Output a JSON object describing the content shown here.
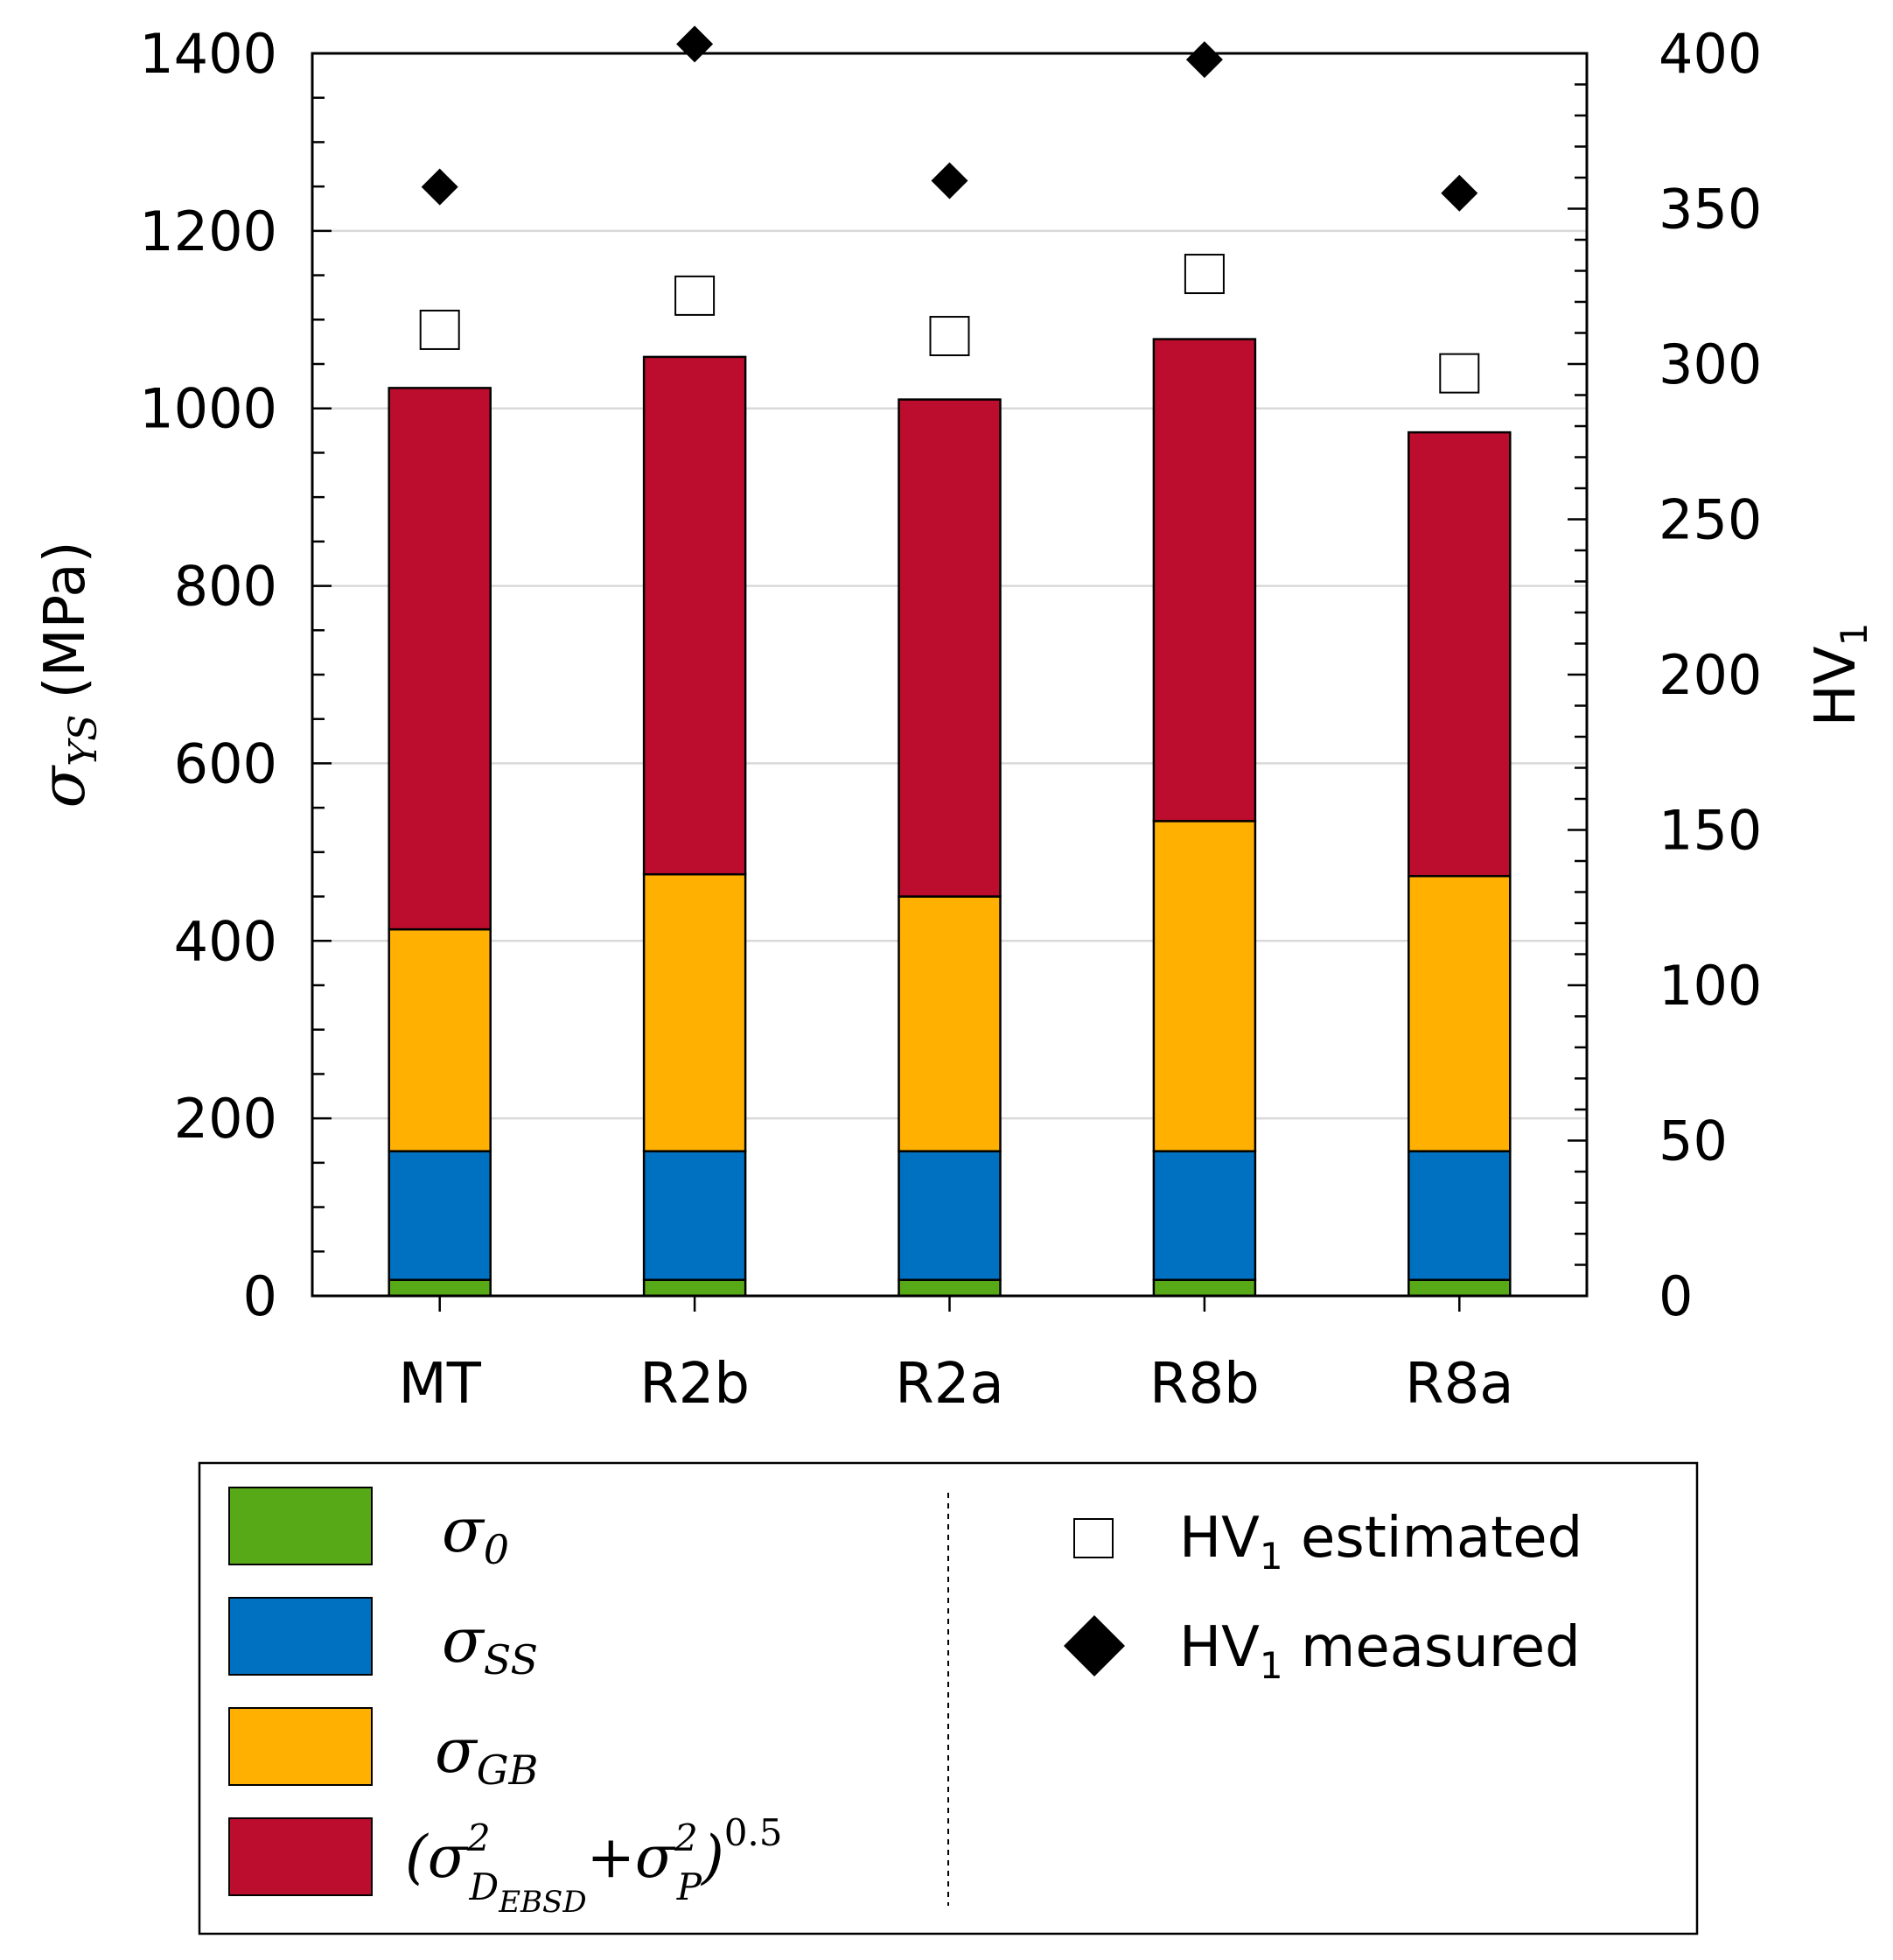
{
  "chart_data": {
    "type": "bar",
    "stacked": true,
    "categories": [
      "MT",
      "R2b",
      "R2a",
      "R8b",
      "R8a"
    ],
    "series": [
      {
        "name": "σ0",
        "color": "#58A918",
        "values": [
          18,
          18,
          18,
          18,
          18
        ]
      },
      {
        "name": "σSS",
        "color": "#0070C0",
        "values": [
          145,
          145,
          145,
          145,
          145
        ]
      },
      {
        "name": "σGB",
        "color": "#FFB000",
        "values": [
          250,
          312,
          287,
          372,
          310
        ]
      },
      {
        "name": "(σ²D_EBSD + σ²P)^0.5",
        "color": "#BD0D2E",
        "values": [
          610,
          583,
          560,
          543,
          500
        ]
      }
    ],
    "secondary_series": [
      {
        "name": "HV1 estimated",
        "marker": "square-open",
        "values": [
          311,
          322,
          309,
          329,
          297
        ]
      },
      {
        "name": "HV1 measured",
        "marker": "diamond-filled",
        "values": [
          357,
          403,
          359,
          398,
          355
        ]
      }
    ],
    "ylabel_left": {
      "symbol": "σ",
      "subscript": "YS",
      "unit": "(MPa)"
    },
    "ylabel_right": {
      "base": "HV",
      "subscript": "1"
    },
    "ylim_left": [
      0,
      1400
    ],
    "yticks_left": [
      "0",
      "200",
      "400",
      "600",
      "800",
      "1000",
      "1200",
      "1400"
    ],
    "ylim_right": [
      0,
      400
    ],
    "yticks_right": [
      "0",
      "50",
      "100",
      "150",
      "200",
      "250",
      "300",
      "350",
      "400"
    ],
    "grid": true,
    "legend": {
      "position": "bottom",
      "entries": [
        {
          "symbol": "σ",
          "sub": "0"
        },
        {
          "symbol": "σ",
          "sub": "SS"
        },
        {
          "symbol": "σ",
          "sub": "GB"
        },
        {
          "open": "(σ",
          "sup1": "2",
          "sub1": "D",
          "subsub": "EBSD",
          "plus": "+σ",
          "sup2": "2",
          "sub2": "P",
          "close": ")",
          "exp": "0.5"
        }
      ],
      "hv_entries": [
        {
          "base": "HV",
          "sub": "1",
          "text": " estimated"
        },
        {
          "base": "HV",
          "sub": "1",
          "text": " measured"
        }
      ]
    }
  }
}
